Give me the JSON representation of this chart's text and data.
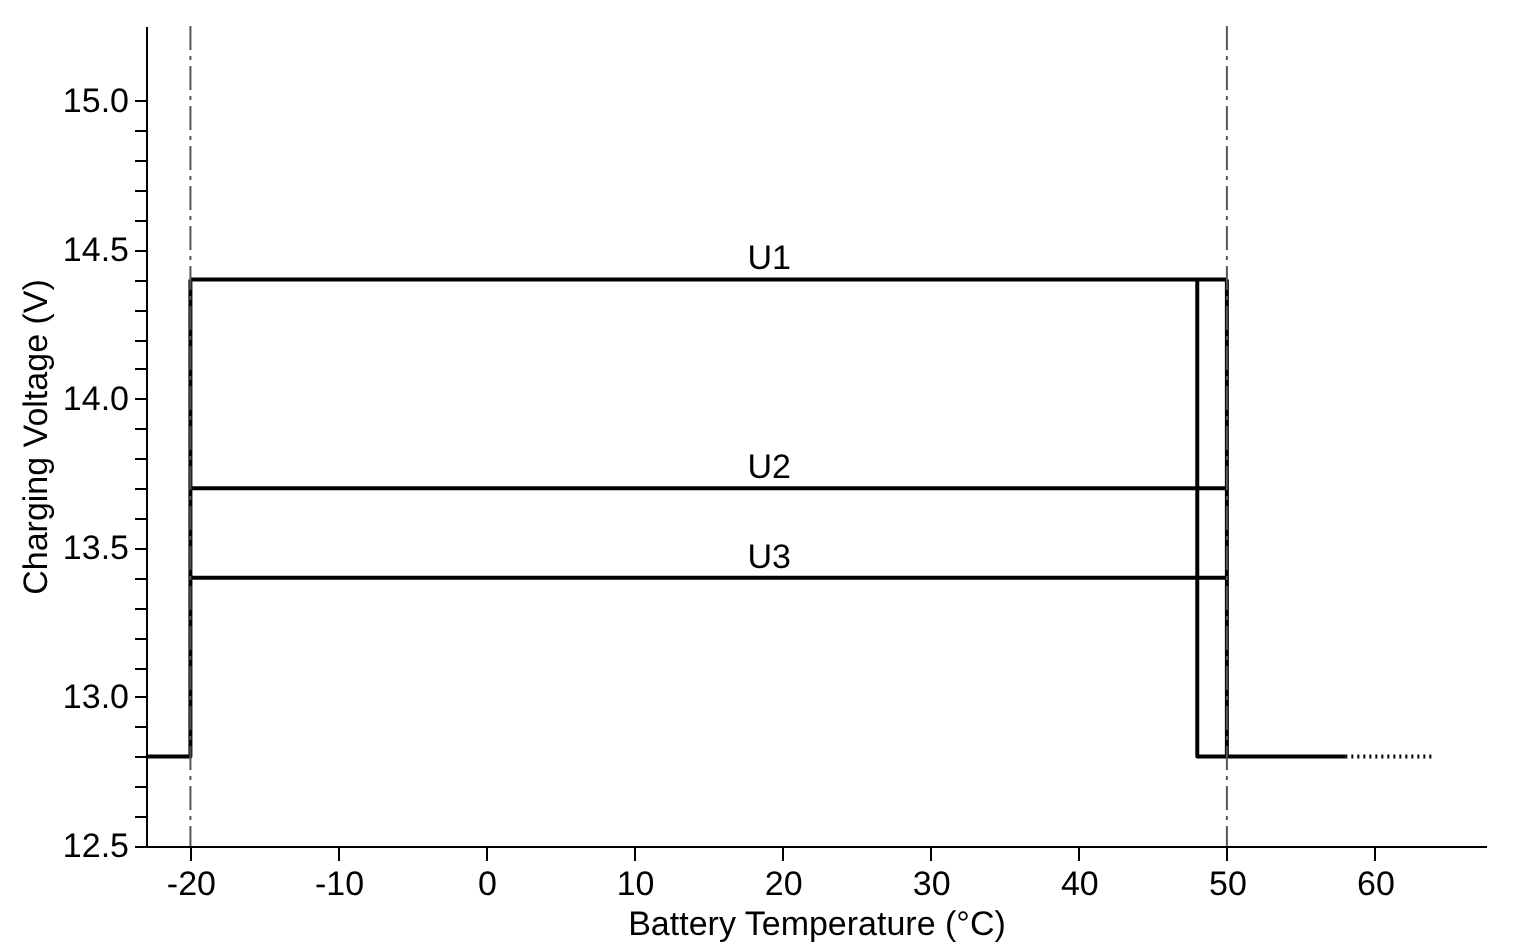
{
  "chart_data": {
    "type": "line",
    "xlabel": "Battery Temperature (°C)",
    "ylabel": "Charging Voltage (V)",
    "series": [
      {
        "color": "#000000",
        "x": [
          -23,
          -20,
          -20
        ],
        "values": [
          12.8,
          12.8,
          14.4
        ]
      },
      {
        "color": "#000000",
        "x": [
          -20,
          50
        ],
        "values": [
          14.4,
          14.4
        ]
      },
      {
        "color": "#000000",
        "x": [
          -20,
          50
        ],
        "values": [
          13.7,
          13.7
        ]
      },
      {
        "color": "#000000",
        "x": [
          -20,
          50
        ],
        "values": [
          13.4,
          13.4
        ]
      },
      {
        "color": "#000000",
        "x": [
          48,
          48,
          50,
          50
        ],
        "values": [
          14.4,
          12.8,
          12.8,
          14.4
        ]
      },
      {
        "color": "#000000",
        "x": [
          50,
          58
        ],
        "values": [
          12.8,
          12.8
        ]
      },
      {
        "color": "#000000",
        "x": [
          58,
          64
        ],
        "values": [
          12.8,
          12.8
        ],
        "line_style": "dotted"
      }
    ],
    "annotations": [
      {
        "text": "U1",
        "y": 14.4
      },
      {
        "text": "U2",
        "y": 13.7
      },
      {
        "text": "U3",
        "y": 13.4
      }
    ],
    "ref_lines": [
      {
        "axis": "x",
        "value": -20,
        "color": "#555555",
        "line_style": "dashdot"
      },
      {
        "axis": "x",
        "value": 50,
        "color": "#555555",
        "line_style": "dashdot"
      }
    ],
    "xlim": [
      -23,
      67.5
    ],
    "xticks": [
      -20,
      -10,
      0,
      10,
      20,
      30,
      40,
      50,
      60
    ],
    "ylim": [
      12.5,
      15.25
    ],
    "yticks": [
      12.5,
      {
        "value": 12.6,
        "label": null
      },
      {
        "value": 12.7,
        "label": null
      },
      {
        "value": 12.8,
        "label": null
      },
      {
        "value": 12.9,
        "label": null
      },
      {
        "value": 13.0,
        "label": "13.0"
      },
      {
        "value": 13.1,
        "label": null
      },
      {
        "value": 13.2,
        "label": null
      },
      {
        "value": 13.3,
        "label": null
      },
      {
        "value": 13.4,
        "label": null
      },
      13.5,
      {
        "value": 13.6,
        "label": null
      },
      {
        "value": 13.7,
        "label": null
      },
      {
        "value": 13.8,
        "label": null
      },
      {
        "value": 13.9,
        "label": null
      },
      {
        "value": 14.0,
        "label": "14.0"
      },
      {
        "value": 14.1,
        "label": null
      },
      {
        "value": 14.2,
        "label": null
      },
      {
        "value": 14.3,
        "label": null
      },
      {
        "value": 14.4,
        "label": null
      },
      14.5,
      {
        "value": 14.6,
        "label": null
      },
      {
        "value": 14.7,
        "label": null
      },
      {
        "value": 14.8,
        "label": null
      },
      {
        "value": 14.9,
        "label": null
      },
      {
        "value": 15.0,
        "label": "15.0"
      }
    ],
    "grid": false,
    "marker": "none",
    "line_style": "solid"
  }
}
